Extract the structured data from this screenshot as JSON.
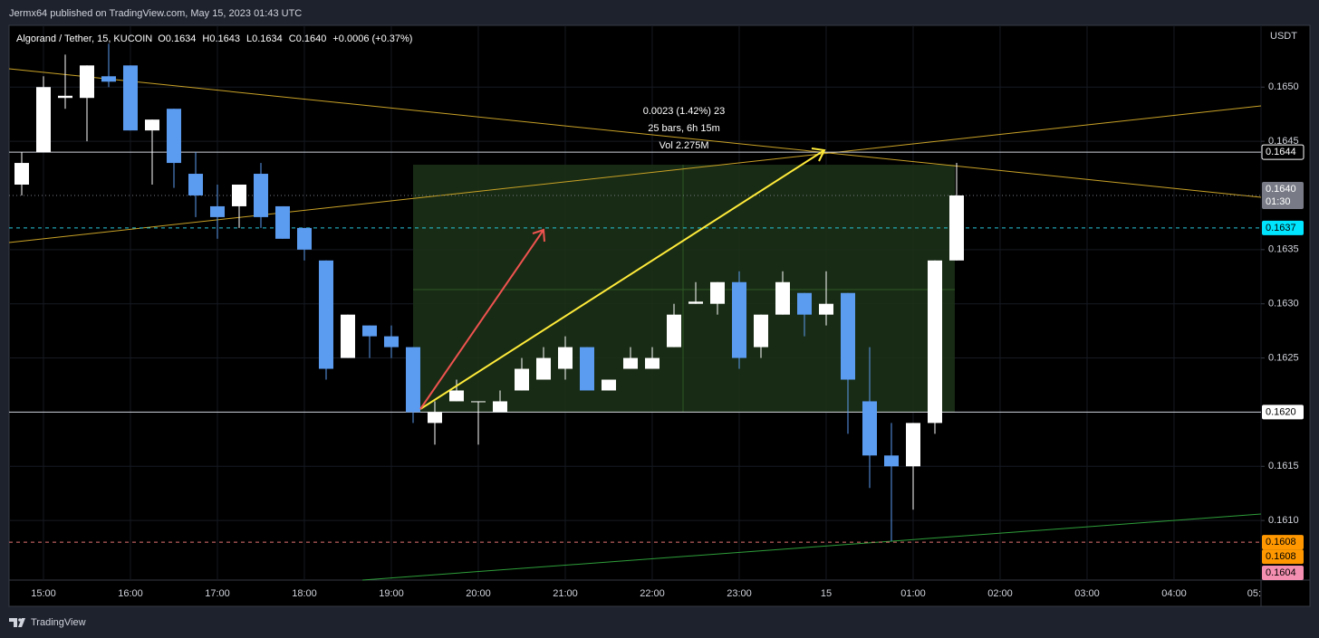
{
  "header": {
    "text": "Jermx64 published on TradingView.com, May 15, 2023 01:43 UTC"
  },
  "footer": {
    "brand": "TradingView"
  },
  "chart_data": {
    "type": "candlestick",
    "title": "Algorand / Tether, 15, KUCOIN",
    "ohlc_legend": [
      "O0.1634",
      "H0.1643",
      "L0.1634",
      "C0.1640",
      "+0.0006 (+0.37%)"
    ],
    "currency": "USDT",
    "annotations": [
      "0.0023 (1.42%) 23",
      "25 bars, 6h 15m",
      "Vol 2.275M"
    ],
    "up_color": "#ffffff",
    "down_color": "#5b9bf0",
    "open": [
      0.1641,
      0.1644,
      0.1649,
      0.1649,
      0.1651,
      0.1652,
      0.1646,
      0.1648,
      0.1642,
      0.1639,
      0.1639,
      0.1642,
      0.1639,
      0.1637,
      0.1634,
      0.1625,
      0.1628,
      0.1627,
      0.1626,
      0.1619,
      0.1621,
      0.1621,
      0.162,
      0.1622,
      0.1623,
      0.1624,
      0.1626,
      0.1622,
      0.1624,
      0.1624,
      0.1626,
      0.163,
      0.163,
      0.1632,
      0.1626,
      0.1629,
      0.1631,
      0.1629,
      0.1631,
      0.1621,
      0.1616,
      0.1615,
      0.1619,
      0.1634
    ],
    "high": [
      0.1644,
      0.1651,
      0.1653,
      0.1652,
      0.1654,
      0.1652,
      0.1647,
      0.1648,
      0.1644,
      0.1641,
      0.1641,
      0.1643,
      0.1639,
      0.1637,
      0.1634,
      0.1629,
      0.1628,
      0.1628,
      0.1626,
      0.1621,
      0.1623,
      0.1621,
      0.1622,
      0.1625,
      0.1626,
      0.1627,
      0.1626,
      0.1623,
      0.1626,
      0.1626,
      0.163,
      0.1632,
      0.1632,
      0.1633,
      0.1629,
      0.1633,
      0.1631,
      0.1633,
      0.1631,
      0.1626,
      0.1619,
      0.1619,
      0.1634,
      0.1643
    ],
    "low": [
      0.164,
      0.1644,
      0.1648,
      0.1645,
      0.165,
      0.1646,
      0.1641,
      0.16407,
      0.1638,
      0.1636,
      0.1637,
      0.1637,
      0.1636,
      0.1634,
      0.1623,
      0.1625,
      0.1625,
      0.1625,
      0.1619,
      0.1617,
      0.1621,
      0.1617,
      0.162,
      0.1622,
      0.1623,
      0.1623,
      0.1622,
      0.1622,
      0.1624,
      0.1624,
      0.1626,
      0.163,
      0.1629,
      0.1624,
      0.1625,
      0.1629,
      0.1627,
      0.1628,
      0.1618,
      0.1613,
      0.16081,
      0.1611,
      0.1618,
      0.1634
    ],
    "close": [
      0.1643,
      0.165,
      0.16492,
      0.1652,
      0.16505,
      0.1646,
      0.1647,
      0.1643,
      0.164,
      0.1638,
      0.1641,
      0.1638,
      0.1636,
      0.1635,
      0.1624,
      0.1629,
      0.1627,
      0.1626,
      0.162,
      0.162,
      0.1622,
      0.1621,
      0.1621,
      0.1624,
      0.1625,
      0.1626,
      0.1622,
      0.1623,
      0.1625,
      0.1625,
      0.1629,
      0.16302,
      0.1632,
      0.1625,
      0.1629,
      0.1632,
      0.1629,
      0.163,
      0.1623,
      0.1616,
      0.1615,
      0.1619,
      0.1634,
      0.164
    ],
    "xlim": [
      -0.583,
      57
    ],
    "xticks": [
      {
        "value": 1,
        "label": "15:00"
      },
      {
        "value": 5,
        "label": "16:00"
      },
      {
        "value": 9,
        "label": "17:00"
      },
      {
        "value": 13,
        "label": "18:00"
      },
      {
        "value": 17,
        "label": "19:00"
      },
      {
        "value": 21,
        "label": "20:00"
      },
      {
        "value": 25,
        "label": "21:00"
      },
      {
        "value": 29,
        "label": "22:00"
      },
      {
        "value": 33,
        "label": "23:00"
      },
      {
        "value": 37,
        "label": "15"
      },
      {
        "value": 41,
        "label": "01:00"
      },
      {
        "value": 45,
        "label": "02:00"
      },
      {
        "value": 49,
        "label": "03:00"
      },
      {
        "value": 53,
        "label": "04:00"
      },
      {
        "value": 57,
        "label": "05:"
      }
    ],
    "ylim": [
      0.16045,
      0.16557
    ],
    "yticks": [
      {
        "value": 0.161,
        "label": "0.1610"
      },
      0.1615,
      0.1625,
      {
        "value": 0.163,
        "label": "0.1630"
      },
      0.1635,
      0.1645,
      {
        "value": 0.165,
        "label": "0.1650"
      }
    ],
    "grid": true,
    "price_labels": [
      {
        "value": 0.1644,
        "bg": "#000000",
        "fg": "#ffffff",
        "border": "#ffffff",
        "line": "solid",
        "line_color": "#d1d4dc"
      },
      {
        "value": 0.164,
        "label": "0.1640",
        "sub": "01:30",
        "bg": "#787b86",
        "fg": "#ffffff",
        "line": "dotted",
        "line_color": "#787b86"
      },
      {
        "value": 0.1637,
        "bg": "#00e5ff",
        "fg": "#000000",
        "line": "dashed",
        "line_color": "#26c6da"
      },
      {
        "value": 0.162,
        "label": "0.1620",
        "bg": "#ffffff",
        "fg": "#000000",
        "line": "solid",
        "line_color": "#d1d4dc"
      },
      {
        "value": 0.1608,
        "bg": "#ff9800",
        "fg": "#000000",
        "line": "dashed",
        "line_color": "#e57373"
      },
      {
        "value": 0.1608,
        "bg": "#ff9800",
        "fg": "#000000"
      },
      {
        "value": 0.1604,
        "bg": "#f48fb1",
        "fg": "#000000"
      }
    ]
  }
}
